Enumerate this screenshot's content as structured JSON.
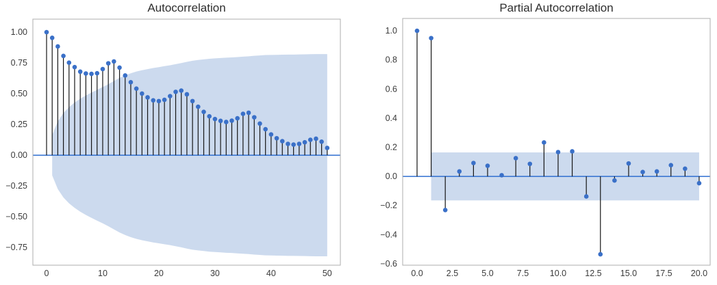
{
  "colors": {
    "background": "#ffffff",
    "marker": "#3a70c8",
    "stem": "#151515",
    "zero_line": "#2e6ed0",
    "confidence_band": "#ccdaee",
    "frame": "#adadad",
    "tick_label": "#3a3a3a",
    "title": "#2e2e2e"
  },
  "chart_data": [
    {
      "type": "stem",
      "title": "Autocorrelation",
      "xlabel": "",
      "ylabel": "",
      "grid": false,
      "legend": null,
      "xlim": [
        -2.44,
        52.34
      ],
      "ylim": [
        -0.894,
        1.106
      ],
      "lags": [
        0,
        1,
        2,
        3,
        4,
        5,
        6,
        7,
        8,
        9,
        10,
        11,
        12,
        13,
        14,
        15,
        16,
        17,
        18,
        19,
        20,
        21,
        22,
        23,
        24,
        25,
        26,
        27,
        28,
        29,
        30,
        31,
        32,
        33,
        34,
        35,
        36,
        37,
        38,
        39,
        40,
        41,
        42,
        43,
        44,
        45,
        46,
        47,
        48,
        49,
        50
      ],
      "values": [
        1.0,
        0.954,
        0.884,
        0.807,
        0.752,
        0.716,
        0.679,
        0.664,
        0.661,
        0.666,
        0.7,
        0.747,
        0.762,
        0.712,
        0.648,
        0.593,
        0.541,
        0.501,
        0.47,
        0.446,
        0.44,
        0.45,
        0.48,
        0.515,
        0.525,
        0.495,
        0.44,
        0.394,
        0.352,
        0.316,
        0.294,
        0.279,
        0.27,
        0.281,
        0.3,
        0.336,
        0.345,
        0.308,
        0.257,
        0.211,
        0.169,
        0.138,
        0.114,
        0.092,
        0.086,
        0.092,
        0.105,
        0.125,
        0.134,
        0.11,
        0.059
      ],
      "band": {
        "note": "confidence interval, symmetric about zero",
        "x": [
          1,
          2,
          3,
          4,
          5,
          6,
          7,
          8,
          9,
          10,
          11,
          12,
          13,
          14,
          15,
          16,
          17,
          18,
          19,
          20,
          21,
          22,
          23,
          24,
          25,
          26,
          27,
          28,
          29,
          30,
          31,
          32,
          33,
          34,
          35,
          36,
          37,
          38,
          39,
          40,
          41,
          42,
          43,
          44,
          45,
          46,
          47,
          48,
          49,
          50
        ],
        "upper": [
          0.164,
          0.275,
          0.343,
          0.391,
          0.428,
          0.459,
          0.486,
          0.509,
          0.532,
          0.554,
          0.577,
          0.603,
          0.628,
          0.649,
          0.666,
          0.68,
          0.691,
          0.7,
          0.709,
          0.716,
          0.724,
          0.731,
          0.74,
          0.749,
          0.759,
          0.768,
          0.774,
          0.779,
          0.784,
          0.787,
          0.79,
          0.793,
          0.795,
          0.798,
          0.801,
          0.804,
          0.808,
          0.811,
          0.814,
          0.815,
          0.816,
          0.817,
          0.818,
          0.818,
          0.819,
          0.82,
          0.821,
          0.822,
          0.822,
          0.822
        ]
      },
      "xticks": {
        "values": [
          0,
          10,
          20,
          30,
          40,
          50
        ],
        "labels": [
          "0",
          "10",
          "20",
          "30",
          "40",
          "50"
        ]
      },
      "yticks": {
        "values": [
          1.0,
          0.75,
          0.5,
          0.25,
          0.0,
          -0.25,
          -0.5,
          -0.75
        ],
        "labels": [
          "1.00",
          "0.75",
          "0.50",
          "0.25",
          "0.00",
          "−0.25",
          "−0.50",
          "−0.75"
        ]
      }
    },
    {
      "type": "stem",
      "title": "Partial Autocorrelation",
      "xlabel": "",
      "ylabel": "",
      "grid": false,
      "legend": null,
      "xlim": [
        -1.02,
        20.78
      ],
      "ylim": [
        -0.61,
        1.085
      ],
      "lags": [
        0,
        1,
        2,
        3,
        4,
        5,
        6,
        7,
        8,
        9,
        10,
        11,
        12,
        13,
        14,
        15,
        16,
        17,
        18,
        19,
        20
      ],
      "values": [
        1.0,
        0.95,
        -0.231,
        0.034,
        0.092,
        0.073,
        0.008,
        0.125,
        0.086,
        0.233,
        0.167,
        0.172,
        -0.138,
        -0.535,
        -0.028,
        0.089,
        0.03,
        0.034,
        0.077,
        0.053,
        -0.047
      ],
      "band": {
        "note": "confidence interval, symmetric about zero",
        "x": [
          1,
          20
        ],
        "upper": [
          0.165,
          0.165
        ]
      },
      "xticks": {
        "values": [
          0,
          2.5,
          5,
          7.5,
          10,
          12.5,
          15,
          17.5,
          20
        ],
        "labels": [
          "0.0",
          "2.5",
          "5.0",
          "7.5",
          "10.0",
          "12.5",
          "15.0",
          "17.5",
          "20.0"
        ]
      },
      "yticks": {
        "values": [
          1.0,
          0.8,
          0.6,
          0.4,
          0.2,
          0.0,
          -0.2,
          -0.4,
          -0.6
        ],
        "labels": [
          "1.0",
          "0.8",
          "0.6",
          "0.4",
          "0.2",
          "0.0",
          "−0.2",
          "−0.4",
          "−0.6"
        ]
      }
    }
  ]
}
